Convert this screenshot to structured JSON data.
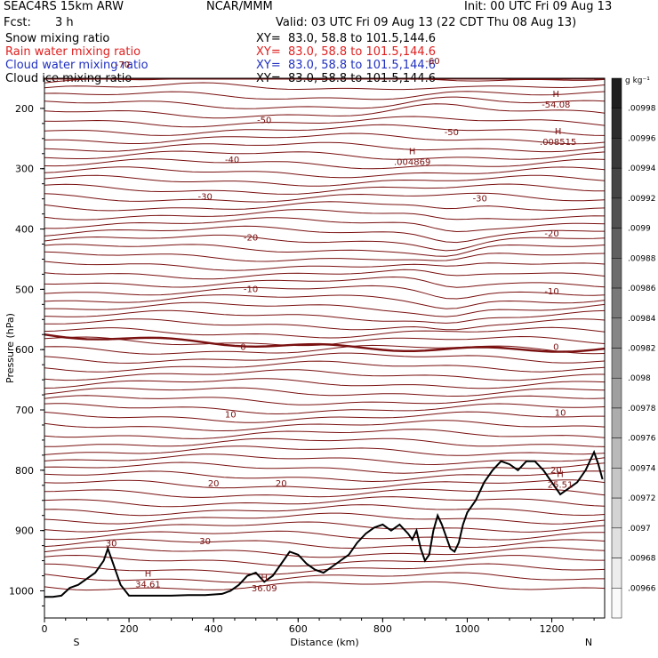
{
  "header": {
    "model": "SEAC4RS 15km ARW",
    "org": "NCAR/MMM",
    "init": "Init: 00 UTC Fri 09 Aug 13",
    "fcst_label": "Fcst:",
    "fcst_value": "3 h",
    "valid": "Valid: 03 UTC Fri 09 Aug 13 (22 CDT Thu 08 Aug 13)"
  },
  "fields": [
    {
      "name": "Snow mixing ratio",
      "xy": "XY=  83.0, 58.8 to 101.5,144.6",
      "color": "#000000"
    },
    {
      "name": "Rain water mixing ratio",
      "xy": "XY=  83.0, 58.8 to 101.5,144.6",
      "color": "#e02020"
    },
    {
      "name": "Cloud water mixing ratio",
      "xy": "XY=  83.0, 58.8 to 101.5,144.6",
      "color": "#2030c0"
    },
    {
      "name": "Cloud ice mixing ratio",
      "xy": "XY=  83.0, 58.8 to 101.5,144.6",
      "color": "#000000"
    }
  ],
  "chart_data": {
    "type": "line",
    "xlabel": "Distance (km)",
    "ylabel": "Pressure (hPa)",
    "xlim": [
      0,
      1325
    ],
    "ylim": [
      150,
      1045
    ],
    "x_ticks": [
      "0",
      "200",
      "400",
      "600",
      "800",
      "1000",
      "1200"
    ],
    "y_ticks": [
      "200",
      "300",
      "400",
      "500",
      "600",
      "700",
      "800",
      "900",
      "1000"
    ],
    "end_labels": {
      "left": "S",
      "right": "N"
    },
    "colorbar": {
      "unit": "g kg⁻¹",
      "labels": [
        ".00998",
        ".00996",
        ".00994",
        ".00992",
        ".0099",
        ".00988",
        ".00986",
        ".00984",
        ".00982",
        ".0098",
        ".00978",
        ".00976",
        ".00974",
        ".00972",
        ".0097",
        ".00968",
        ".00966"
      ]
    },
    "temperature_contour_labels": [
      "-70",
      "-60",
      "-50",
      "-50",
      "-40",
      "-30",
      "-30",
      "-20",
      "-20",
      "-10",
      "-10",
      "0",
      "0",
      "10",
      "10",
      "20",
      "20",
      "20",
      "30",
      "30"
    ],
    "extrema": [
      {
        "symbol": "H",
        "value": "-54.08",
        "x": 1210,
        "p": 190
      },
      {
        "symbol": "H",
        "value": ".008515",
        "x": 1215,
        "p": 252
      },
      {
        "symbol": "H",
        "value": ".004869",
        "x": 870,
        "p": 285
      },
      {
        "symbol": "H",
        "value": "34.61",
        "x": 245,
        "p": 985
      },
      {
        "symbol": "H",
        "value": "36.09",
        "x": 520,
        "p": 992
      },
      {
        "symbol": "H",
        "value": "25.51",
        "x": 1220,
        "p": 820
      }
    ],
    "terrain": {
      "x": [
        0,
        20,
        40,
        60,
        80,
        100,
        120,
        140,
        150,
        165,
        180,
        200,
        230,
        260,
        300,
        340,
        380,
        420,
        440,
        460,
        480,
        500,
        520,
        540,
        560,
        580,
        600,
        620,
        640,
        660,
        680,
        700,
        720,
        740,
        760,
        780,
        800,
        810,
        820,
        840,
        860,
        870,
        880,
        890,
        900,
        910,
        920,
        930,
        940,
        950,
        960,
        970,
        980,
        990,
        1000,
        1020,
        1040,
        1060,
        1080,
        1100,
        1120,
        1140,
        1160,
        1180,
        1200,
        1220,
        1240,
        1260,
        1280,
        1300,
        1310,
        1320
      ],
      "p": [
        1010,
        1010,
        1008,
        995,
        990,
        980,
        970,
        950,
        930,
        960,
        990,
        1008,
        1008,
        1008,
        1008,
        1007,
        1007,
        1005,
        1000,
        990,
        975,
        970,
        985,
        975,
        955,
        935,
        940,
        955,
        965,
        970,
        960,
        950,
        940,
        920,
        905,
        895,
        890,
        895,
        900,
        890,
        905,
        915,
        900,
        930,
        950,
        940,
        900,
        875,
        890,
        910,
        930,
        935,
        920,
        890,
        870,
        850,
        820,
        800,
        785,
        790,
        800,
        785,
        785,
        800,
        820,
        840,
        830,
        820,
        800,
        770,
        790,
        815
      ]
    }
  }
}
